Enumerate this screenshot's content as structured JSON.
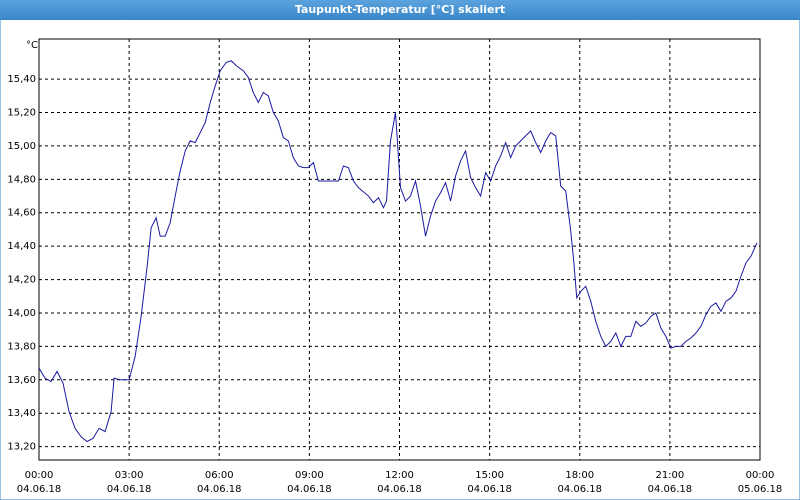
{
  "chart_data": {
    "type": "line",
    "title": "Taupunkt-Temperatur [°C] skaliert",
    "ylabel": "°C",
    "xlim": [
      0,
      1440
    ],
    "ylim": [
      13.12,
      15.64
    ],
    "grid": true,
    "xticks": [
      {
        "value": 0,
        "label": "00:00"
      },
      {
        "value": 180,
        "label": "03:00"
      },
      {
        "value": 360,
        "label": "06:00"
      },
      {
        "value": 540,
        "label": "09:00"
      },
      {
        "value": 720,
        "label": "12:00"
      },
      {
        "value": 900,
        "label": "15:00"
      },
      {
        "value": 1080,
        "label": "18:00"
      },
      {
        "value": 1260,
        "label": "21:00"
      },
      {
        "value": 1440,
        "label": "00:00"
      }
    ],
    "xtick_dates": [
      "04.06.18",
      "04.06.18",
      "04.06.18",
      "04.06.18",
      "04.06.18",
      "04.06.18",
      "04.06.18",
      "04.06.18",
      "05.06.18"
    ],
    "yticks": [
      {
        "value": 13.2,
        "label": "13,20"
      },
      {
        "value": 13.4,
        "label": "13,40"
      },
      {
        "value": 13.6,
        "label": "13,60"
      },
      {
        "value": 13.8,
        "label": "13,80"
      },
      {
        "value": 14.0,
        "label": "14,00"
      },
      {
        "value": 14.2,
        "label": "14,20"
      },
      {
        "value": 14.4,
        "label": "14,40"
      },
      {
        "value": 14.6,
        "label": "14,60"
      },
      {
        "value": 14.8,
        "label": "14,80"
      },
      {
        "value": 15.0,
        "label": "15,00"
      },
      {
        "value": 15.2,
        "label": "15,20"
      },
      {
        "value": 15.4,
        "label": "15,40"
      }
    ],
    "x": [
      0,
      12,
      24,
      36,
      48,
      60,
      72,
      84,
      96,
      108,
      120,
      132,
      144,
      150,
      162,
      180,
      192,
      204,
      216,
      224,
      234,
      242,
      252,
      262,
      272,
      282,
      292,
      302,
      312,
      322,
      332,
      342,
      352,
      362,
      374,
      384,
      394,
      408,
      418,
      428,
      438,
      448,
      458,
      468,
      478,
      488,
      498,
      508,
      518,
      528,
      538,
      548,
      558,
      578,
      598,
      608,
      618,
      628,
      638,
      658,
      668,
      678,
      688,
      694,
      702,
      712,
      722,
      732,
      742,
      752,
      762,
      772,
      782,
      792,
      802,
      812,
      822,
      832,
      842,
      852,
      862,
      872,
      882,
      892,
      902,
      912,
      922,
      932,
      942,
      952,
      962,
      972,
      982,
      992,
      1002,
      1012,
      1022,
      1032,
      1042,
      1052,
      1062,
      1068,
      1074,
      1082,
      1092,
      1102,
      1112,
      1122,
      1132,
      1142,
      1152,
      1162,
      1172,
      1182,
      1192,
      1202,
      1212,
      1222,
      1232,
      1242,
      1252,
      1262,
      1272,
      1282,
      1292,
      1302,
      1312,
      1322,
      1332,
      1342,
      1352,
      1362,
      1372,
      1382,
      1392,
      1402,
      1412,
      1422,
      1434
    ],
    "series": [
      {
        "color": "#1a1aa0",
        "values": [
          13.67,
          13.61,
          13.59,
          13.65,
          13.58,
          13.41,
          13.31,
          13.26,
          13.23,
          13.25,
          13.31,
          13.29,
          13.41,
          13.61,
          13.6,
          13.6,
          13.74,
          13.98,
          14.28,
          14.51,
          14.57,
          14.46,
          14.46,
          14.54,
          14.7,
          14.85,
          14.97,
          15.03,
          15.02,
          15.08,
          15.14,
          15.26,
          15.36,
          15.45,
          15.5,
          15.51,
          15.48,
          15.45,
          15.41,
          15.32,
          15.26,
          15.32,
          15.3,
          15.2,
          15.15,
          15.05,
          15.03,
          14.93,
          14.88,
          14.87,
          14.87,
          14.9,
          14.79,
          14.79,
          14.79,
          14.88,
          14.87,
          14.79,
          14.75,
          14.7,
          14.66,
          14.69,
          14.63,
          14.67,
          15.03,
          15.2,
          14.75,
          14.67,
          14.7,
          14.79,
          14.64,
          14.46,
          14.58,
          14.67,
          14.72,
          14.78,
          14.67,
          14.82,
          14.91,
          14.97,
          14.81,
          14.75,
          14.7,
          14.84,
          14.79,
          14.88,
          14.94,
          15.02,
          14.93,
          15.0,
          15.03,
          15.06,
          15.09,
          15.02,
          14.96,
          15.03,
          15.08,
          15.06,
          14.76,
          14.73,
          14.49,
          14.31,
          14.09,
          14.13,
          14.16,
          14.07,
          13.95,
          13.86,
          13.8,
          13.83,
          13.88,
          13.8,
          13.86,
          13.86,
          13.95,
          13.92,
          13.94,
          13.98,
          14.0,
          13.91,
          13.86,
          13.79,
          13.8,
          13.8,
          13.83,
          13.85,
          13.88,
          13.92,
          13.99,
          14.04,
          14.06,
          14.01,
          14.07,
          14.09,
          14.13,
          14.22,
          14.3,
          14.34,
          14.42
        ]
      }
    ]
  }
}
